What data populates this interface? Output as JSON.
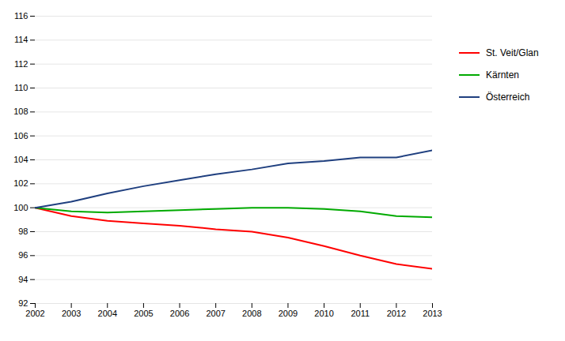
{
  "chart_data": {
    "type": "line",
    "x": [
      2002,
      2003,
      2004,
      2005,
      2006,
      2007,
      2008,
      2009,
      2010,
      2011,
      2012,
      2013
    ],
    "series": [
      {
        "name": "St. Veit/Glan",
        "color": "#FF0000",
        "values": [
          100.0,
          99.3,
          98.9,
          98.7,
          98.5,
          98.2,
          98.0,
          97.5,
          96.8,
          96.0,
          95.3,
          94.9
        ]
      },
      {
        "name": "Kärnten",
        "color": "#00AA00",
        "values": [
          100.0,
          99.7,
          99.6,
          99.7,
          99.8,
          99.9,
          100.0,
          100.0,
          99.9,
          99.7,
          99.3,
          99.2
        ]
      },
      {
        "name": "Österreich",
        "color": "#1F3F7F",
        "values": [
          100.0,
          100.5,
          101.2,
          101.8,
          102.3,
          102.8,
          103.2,
          103.7,
          103.9,
          104.2,
          104.2,
          104.8
        ]
      }
    ],
    "xlim": [
      2002,
      2013
    ],
    "xticks": [
      2002,
      2003,
      2004,
      2005,
      2006,
      2007,
      2008,
      2009,
      2010,
      2011,
      2012,
      2013
    ],
    "ylim": [
      92,
      116
    ],
    "yticks": [
      92,
      94,
      96,
      98,
      100,
      102,
      104,
      106,
      108,
      110,
      112,
      114,
      116
    ],
    "grid": true,
    "legend": "right"
  }
}
